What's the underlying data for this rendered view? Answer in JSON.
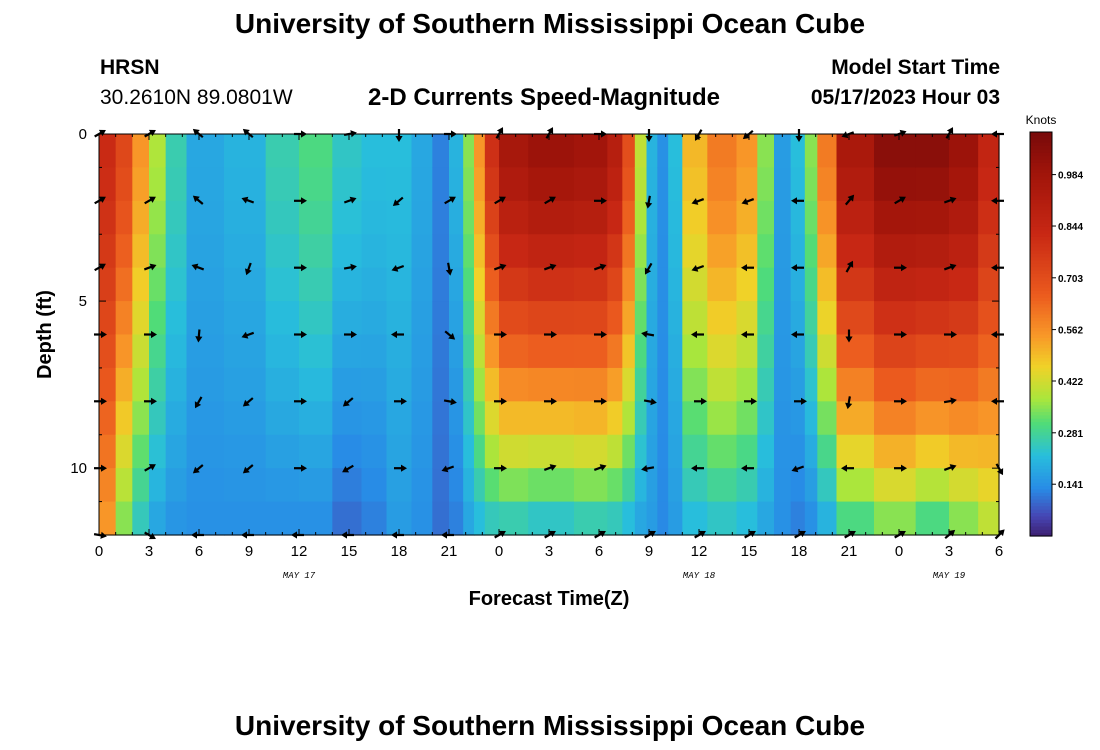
{
  "header": {
    "title": "University of Southern Mississippi Ocean Cube",
    "station_code": "HRSN",
    "station_coords": "30.2610N  89.0801W",
    "plot_title": "2-D Currents Speed-Magnitude",
    "model_start_label": "Model Start Time",
    "model_start_value": "05/17/2023 Hour 03"
  },
  "footer": {
    "title": "University of Southern Mississippi Ocean Cube"
  },
  "chart_data": {
    "type": "heatmap",
    "title": "2-D Currents Speed-Magnitude",
    "xlabel": "Forecast Time(Z)",
    "ylabel": "Depth (ft)",
    "x_range_hours": [
      0,
      54
    ],
    "y_range_ft": [
      0,
      12
    ],
    "x_tick_labels": [
      "0",
      "3",
      "6",
      "9",
      "12",
      "15",
      "18",
      "21",
      "0",
      "3",
      "6",
      "9",
      "12",
      "15",
      "18",
      "21",
      "0",
      "3",
      "6"
    ],
    "y_tick_values": [
      0,
      5,
      10
    ],
    "y_tick_labels": [
      "0",
      "5",
      "10"
    ],
    "day_labels": [
      {
        "text": "MAY 17",
        "hour": 12
      },
      {
        "text": "MAY 18",
        "hour": 36
      },
      {
        "text": "MAY 19",
        "hour": 51
      }
    ],
    "colorbar": {
      "unit": "Knots",
      "range": [
        0,
        1.1
      ],
      "tick_labels": [
        "0.984",
        "0.844",
        "0.703",
        "0.562",
        "0.422",
        "0.281",
        "0.141"
      ],
      "tick_values": [
        0.984,
        0.844,
        0.703,
        0.562,
        0.422,
        0.281,
        0.141
      ]
    },
    "depths_ft": [
      0.5,
      1.5,
      2.5,
      3.5,
      4.5,
      5.5,
      6.5,
      7.5,
      8.5,
      9.5,
      10.5,
      11.5
    ],
    "speed_by_time": [
      {
        "t": 0.5,
        "surf": 0.82,
        "bot": 0.55
      },
      {
        "t": 1.5,
        "surf": 0.72,
        "bot": 0.35
      },
      {
        "t": 2.5,
        "surf": 0.55,
        "bot": 0.25
      },
      {
        "t": 3.5,
        "surf": 0.38,
        "bot": 0.18
      },
      {
        "t": 4.5,
        "surf": 0.26,
        "bot": 0.15
      },
      {
        "t": 6.0,
        "surf": 0.18,
        "bot": 0.14
      },
      {
        "t": 9.0,
        "surf": 0.2,
        "bot": 0.14
      },
      {
        "t": 11.0,
        "surf": 0.26,
        "bot": 0.14
      },
      {
        "t": 13.0,
        "surf": 0.3,
        "bot": 0.14
      },
      {
        "t": 15.0,
        "surf": 0.24,
        "bot": 0.1
      },
      {
        "t": 16.5,
        "surf": 0.22,
        "bot": 0.12
      },
      {
        "t": 18.0,
        "surf": 0.22,
        "bot": 0.16
      },
      {
        "t": 19.5,
        "surf": 0.18,
        "bot": 0.14
      },
      {
        "t": 20.5,
        "surf": 0.12,
        "bot": 0.1
      },
      {
        "t": 21.5,
        "surf": 0.2,
        "bot": 0.12
      },
      {
        "t": 22.2,
        "surf": 0.35,
        "bot": 0.18
      },
      {
        "t": 22.8,
        "surf": 0.55,
        "bot": 0.22
      },
      {
        "t": 23.5,
        "surf": 0.8,
        "bot": 0.25
      },
      {
        "t": 24.5,
        "surf": 0.96,
        "bot": 0.26
      },
      {
        "t": 27.0,
        "surf": 1.0,
        "bot": 0.24
      },
      {
        "t": 30.0,
        "surf": 0.98,
        "bot": 0.26
      },
      {
        "t": 31.0,
        "surf": 0.9,
        "bot": 0.25
      },
      {
        "t": 31.8,
        "surf": 0.7,
        "bot": 0.22
      },
      {
        "t": 32.5,
        "surf": 0.4,
        "bot": 0.18
      },
      {
        "t": 33.2,
        "surf": 0.2,
        "bot": 0.16
      },
      {
        "t": 33.8,
        "surf": 0.14,
        "bot": 0.13
      },
      {
        "t": 34.5,
        "surf": 0.22,
        "bot": 0.16
      },
      {
        "t": 35.5,
        "surf": 0.5,
        "bot": 0.22
      },
      {
        "t": 37.5,
        "surf": 0.6,
        "bot": 0.24
      },
      {
        "t": 39.0,
        "surf": 0.55,
        "bot": 0.22
      },
      {
        "t": 40.0,
        "surf": 0.35,
        "bot": 0.18
      },
      {
        "t": 41.0,
        "surf": 0.16,
        "bot": 0.14
      },
      {
        "t": 42.0,
        "surf": 0.22,
        "bot": 0.12
      },
      {
        "t": 42.7,
        "surf": 0.35,
        "bot": 0.14
      },
      {
        "t": 43.5,
        "surf": 0.6,
        "bot": 0.2
      },
      {
        "t": 45.0,
        "surf": 0.95,
        "bot": 0.3
      },
      {
        "t": 48.0,
        "surf": 1.05,
        "bot": 0.35
      },
      {
        "t": 50.0,
        "surf": 1.05,
        "bot": 0.3
      },
      {
        "t": 52.0,
        "surf": 1.0,
        "bot": 0.35
      },
      {
        "t": 53.5,
        "surf": 0.85,
        "bot": 0.4
      }
    ],
    "arrow_depths_ft": [
      0,
      2,
      4,
      6,
      8,
      10,
      12
    ],
    "arrow_hours": [
      0,
      3,
      6,
      9,
      12,
      15,
      18,
      21,
      24,
      27,
      30,
      33,
      36,
      39,
      42,
      45,
      48,
      51,
      54
    ],
    "arrow_directions_deg": [
      [
        30,
        30,
        140,
        140,
        0,
        10,
        270,
        0,
        60,
        60,
        0,
        270,
        240,
        220,
        270,
        200,
        20,
        60,
        180
      ],
      [
        30,
        30,
        140,
        160,
        0,
        20,
        220,
        30,
        30,
        30,
        0,
        260,
        200,
        200,
        180,
        50,
        30,
        20,
        180
      ],
      [
        30,
        20,
        160,
        250,
        0,
        10,
        200,
        280,
        20,
        20,
        20,
        240,
        200,
        180,
        180,
        60,
        0,
        20,
        180
      ],
      [
        0,
        0,
        265,
        200,
        0,
        0,
        180,
        320,
        0,
        0,
        0,
        170,
        180,
        180,
        180,
        270,
        0,
        0,
        180
      ],
      [
        0,
        0,
        240,
        220,
        0,
        220,
        0,
        350,
        0,
        0,
        0,
        350,
        0,
        0,
        0,
        260,
        0,
        10,
        180
      ],
      [
        0,
        30,
        220,
        220,
        0,
        210,
        0,
        200,
        0,
        20,
        20,
        190,
        180,
        180,
        200,
        180,
        0,
        20,
        300
      ],
      [
        350,
        330,
        180,
        180,
        180,
        180,
        180,
        180,
        30,
        30,
        30,
        30,
        30,
        30,
        30,
        30,
        30,
        40,
        45
      ]
    ]
  }
}
